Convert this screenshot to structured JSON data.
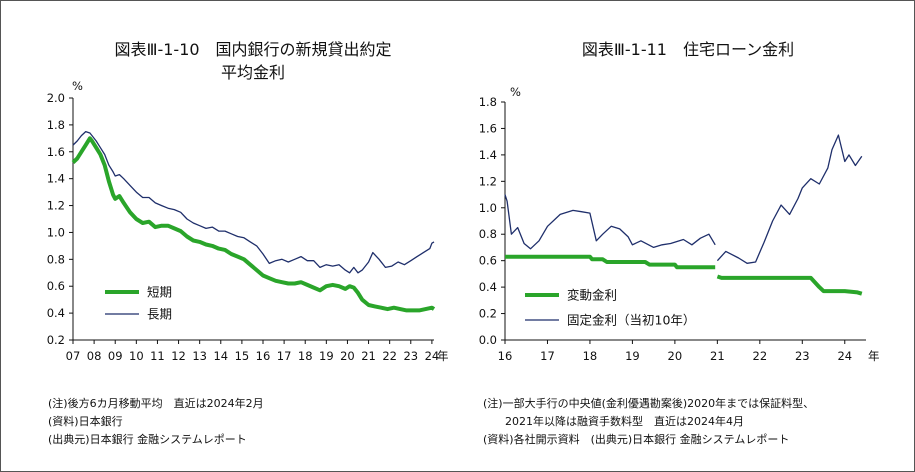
{
  "chart_data": [
    {
      "type": "line",
      "title_line1": "図表Ⅲ-1-10　国内銀行の新規貸出約定",
      "title_line2": "平均金利",
      "unit": "%",
      "unit_x": "年",
      "ylim": [
        0.2,
        2.0
      ],
      "yticks": [
        "2.0",
        "1.8",
        "1.6",
        "1.4",
        "1.2",
        "1.0",
        "0.8",
        "0.6",
        "0.4",
        "0.2"
      ],
      "xticks": [
        "07",
        "08",
        "09",
        "10",
        "11",
        "12",
        "13",
        "14",
        "15",
        "16",
        "17",
        "18",
        "19",
        "20",
        "21",
        "22",
        "23",
        "24"
      ],
      "x_range": [
        2007,
        2024.1
      ],
      "legend": {
        "placement": "lower-left"
      },
      "series": [
        {
          "name": "短期",
          "color": "#2aa52a",
          "width": 4,
          "x": [
            2007.0,
            2007.2,
            2007.4,
            2007.6,
            2007.8,
            2007.9,
            2008.1,
            2008.3,
            2008.5,
            2008.7,
            2008.9,
            2009.0,
            2009.2,
            2009.4,
            2009.7,
            2010.0,
            2010.3,
            2010.6,
            2010.9,
            2011.2,
            2011.5,
            2011.8,
            2012.1,
            2012.4,
            2012.7,
            2013.0,
            2013.3,
            2013.6,
            2013.9,
            2014.2,
            2014.5,
            2014.8,
            2015.1,
            2015.4,
            2015.7,
            2016.0,
            2016.3,
            2016.6,
            2016.9,
            2017.2,
            2017.5,
            2017.8,
            2018.1,
            2018.4,
            2018.7,
            2019.0,
            2019.3,
            2019.6,
            2019.9,
            2020.1,
            2020.3,
            2020.5,
            2020.7,
            2021.0,
            2021.3,
            2021.6,
            2021.9,
            2022.2,
            2022.5,
            2022.8,
            2023.1,
            2023.4,
            2023.7,
            2024.0,
            2024.1
          ],
          "values": [
            1.52,
            1.55,
            1.6,
            1.65,
            1.7,
            1.68,
            1.63,
            1.58,
            1.5,
            1.38,
            1.28,
            1.25,
            1.27,
            1.22,
            1.15,
            1.1,
            1.07,
            1.08,
            1.04,
            1.05,
            1.05,
            1.03,
            1.01,
            0.97,
            0.94,
            0.93,
            0.91,
            0.9,
            0.88,
            0.87,
            0.84,
            0.82,
            0.8,
            0.76,
            0.72,
            0.68,
            0.66,
            0.64,
            0.63,
            0.62,
            0.62,
            0.63,
            0.61,
            0.59,
            0.57,
            0.6,
            0.61,
            0.6,
            0.58,
            0.6,
            0.59,
            0.55,
            0.5,
            0.46,
            0.45,
            0.44,
            0.43,
            0.44,
            0.43,
            0.42,
            0.42,
            0.42,
            0.43,
            0.44,
            0.43
          ]
        },
        {
          "name": "長期",
          "color": "#1f2f6b",
          "width": 1.3,
          "x": [
            2007.0,
            2007.2,
            2007.4,
            2007.6,
            2007.8,
            2007.9,
            2008.1,
            2008.3,
            2008.5,
            2008.7,
            2008.9,
            2009.0,
            2009.2,
            2009.4,
            2009.7,
            2010.0,
            2010.3,
            2010.6,
            2010.9,
            2011.2,
            2011.5,
            2011.8,
            2012.1,
            2012.4,
            2012.7,
            2013.0,
            2013.3,
            2013.6,
            2013.9,
            2014.2,
            2014.5,
            2014.8,
            2015.1,
            2015.4,
            2015.7,
            2016.0,
            2016.3,
            2016.6,
            2016.9,
            2017.2,
            2017.5,
            2017.8,
            2018.1,
            2018.4,
            2018.7,
            2019.0,
            2019.3,
            2019.6,
            2019.9,
            2020.1,
            2020.3,
            2020.5,
            2020.7,
            2021.0,
            2021.2,
            2021.5,
            2021.8,
            2022.1,
            2022.4,
            2022.7,
            2023.0,
            2023.3,
            2023.6,
            2023.9,
            2024.0,
            2024.1
          ],
          "values": [
            1.65,
            1.68,
            1.72,
            1.75,
            1.74,
            1.72,
            1.68,
            1.63,
            1.58,
            1.5,
            1.45,
            1.42,
            1.43,
            1.4,
            1.35,
            1.3,
            1.26,
            1.26,
            1.22,
            1.2,
            1.18,
            1.17,
            1.15,
            1.1,
            1.07,
            1.05,
            1.03,
            1.04,
            1.01,
            1.01,
            0.99,
            0.97,
            0.96,
            0.93,
            0.9,
            0.84,
            0.77,
            0.79,
            0.8,
            0.78,
            0.8,
            0.82,
            0.79,
            0.79,
            0.74,
            0.76,
            0.75,
            0.76,
            0.72,
            0.7,
            0.74,
            0.7,
            0.72,
            0.78,
            0.85,
            0.8,
            0.74,
            0.75,
            0.78,
            0.76,
            0.79,
            0.82,
            0.85,
            0.88,
            0.92,
            0.93
          ]
        }
      ]
    },
    {
      "type": "line",
      "title": "図表Ⅲ-1-11　住宅ローン金利",
      "unit": "%",
      "unit_x": "年",
      "ylim": [
        0.0,
        1.8
      ],
      "yticks": [
        "1.8",
        "1.6",
        "1.4",
        "1.2",
        "1.0",
        "0.8",
        "0.6",
        "0.4",
        "0.2",
        "0.0"
      ],
      "xticks": [
        "16",
        "17",
        "18",
        "19",
        "20",
        "21",
        "22",
        "23",
        "24"
      ],
      "x_range": [
        2016,
        2024.5
      ],
      "legend": {
        "placement": "lower-left"
      },
      "series": [
        {
          "name": "変動金利",
          "color": "#2aa52a",
          "width": 4,
          "segments": [
            {
              "x": [
                2016.0,
                2018.0,
                2018.05,
                2018.3,
                2018.4,
                2019.3,
                2019.4,
                2020.0,
                2020.05,
                2020.95
              ],
              "values": [
                0.63,
                0.63,
                0.61,
                0.61,
                0.59,
                0.59,
                0.57,
                0.57,
                0.55,
                0.55
              ]
            },
            {
              "x": [
                2021.0,
                2021.1,
                2022.5,
                2022.6,
                2023.2,
                2023.4,
                2023.5,
                2024.0,
                2024.3,
                2024.4
              ],
              "values": [
                0.48,
                0.47,
                0.47,
                0.47,
                0.47,
                0.4,
                0.37,
                0.37,
                0.36,
                0.35
              ]
            }
          ]
        },
        {
          "name": "固定金利（当初10年）",
          "color": "#1f2f6b",
          "width": 1.3,
          "segments": [
            {
              "x": [
                2016.0,
                2016.05,
                2016.15,
                2016.3,
                2016.45,
                2016.6,
                2016.8,
                2017.0,
                2017.3,
                2017.6,
                2017.8,
                2018.0,
                2018.15,
                2018.3,
                2018.5,
                2018.7,
                2018.9,
                2019.0,
                2019.2,
                2019.5,
                2019.7,
                2019.9,
                2020.2,
                2020.4,
                2020.6,
                2020.8,
                2020.95
              ],
              "values": [
                1.1,
                1.05,
                0.8,
                0.85,
                0.73,
                0.69,
                0.75,
                0.86,
                0.95,
                0.98,
                0.97,
                0.96,
                0.75,
                0.8,
                0.86,
                0.84,
                0.78,
                0.72,
                0.75,
                0.7,
                0.72,
                0.73,
                0.76,
                0.72,
                0.77,
                0.8,
                0.72
              ]
            },
            {
              "x": [
                2021.0,
                2021.2,
                2021.5,
                2021.7,
                2021.9,
                2022.1,
                2022.3,
                2022.5,
                2022.7,
                2022.9,
                2023.0,
                2023.2,
                2023.4,
                2023.6,
                2023.7,
                2023.85,
                2024.0,
                2024.1,
                2024.25,
                2024.4
              ],
              "values": [
                0.6,
                0.67,
                0.62,
                0.58,
                0.59,
                0.74,
                0.9,
                1.02,
                0.95,
                1.07,
                1.15,
                1.22,
                1.18,
                1.3,
                1.44,
                1.55,
                1.35,
                1.4,
                1.32,
                1.39
              ]
            }
          ]
        }
      ]
    }
  ],
  "notes_left": [
    "(注)後方6カ月移動平均　直近は2024年2月",
    "(資料)日本銀行",
    "(出典元)日本銀行 金融システムレポート"
  ],
  "notes_right": [
    "(注)一部大手行の中央値(金利優遇勘案後)2020年までは保証料型、",
    "　　2021年以降は融資手数料型　直近は2024年4月",
    "(資料)各社開示資料　(出典元)日本銀行 金融システムレポート"
  ]
}
